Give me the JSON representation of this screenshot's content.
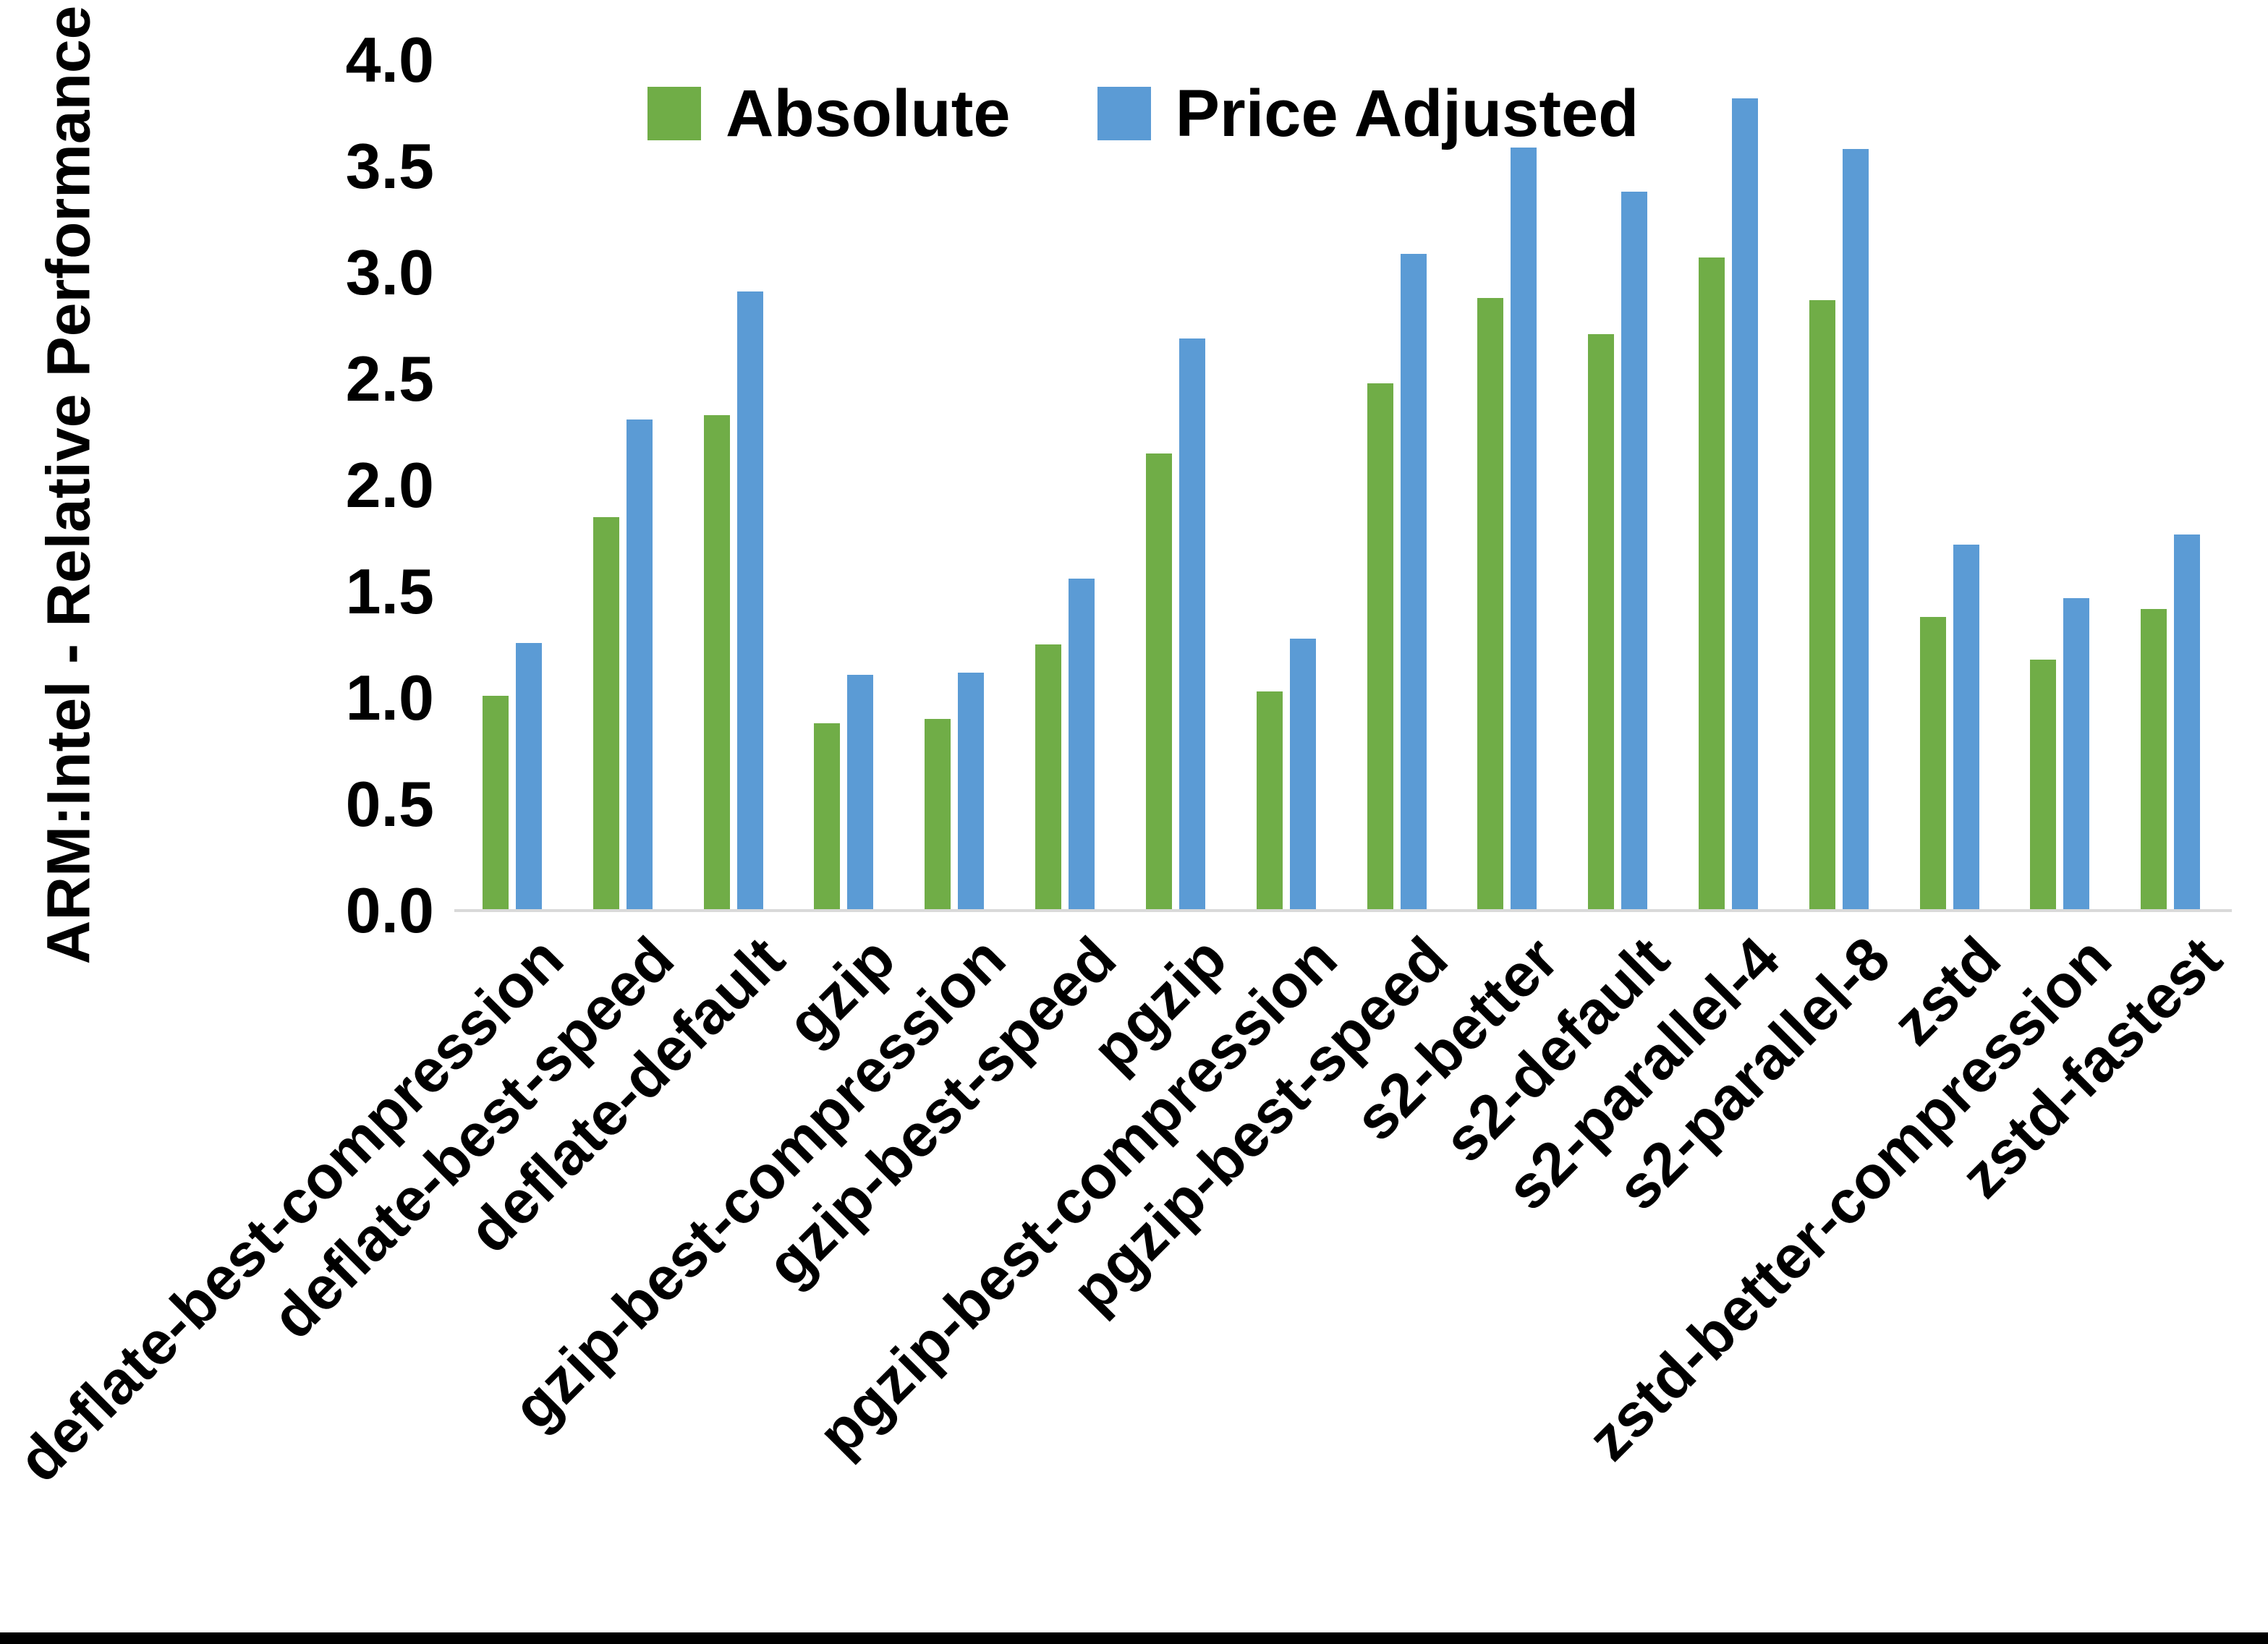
{
  "chart_data": {
    "type": "bar",
    "title": "",
    "xlabel": "",
    "ylabel": "ARM:Intel - Relative Performance",
    "ylim": [
      0.0,
      4.0
    ],
    "ytick_step": 0.5,
    "ytick_labels": [
      "0.0",
      "0.5",
      "1.0",
      "1.5",
      "2.0",
      "2.5",
      "3.0",
      "3.5",
      "4.0"
    ],
    "grid": false,
    "legend_position": "top-center",
    "categories": [
      "deflate-best-compression",
      "deflate-best-speed",
      "deflate-default",
      "gzip",
      "gzip-best-compression",
      "gzip-best-speed",
      "pgzip",
      "pgzip-best-compression",
      "pgzip-best-speed",
      "s2-better",
      "s2-default",
      "s2-parallel-4",
      "s2-parallel-8",
      "zstd",
      "zstd-better-compression",
      "zstd-fastest"
    ],
    "series": [
      {
        "name": "Absolute",
        "color": "#70AD47",
        "values": [
          1.01,
          1.85,
          2.33,
          0.88,
          0.9,
          1.25,
          2.15,
          1.03,
          2.48,
          2.88,
          2.71,
          3.07,
          2.87,
          1.38,
          1.18,
          1.42
        ]
      },
      {
        "name": "Price Adjusted",
        "color": "#5B9BD5",
        "values": [
          1.26,
          2.31,
          2.91,
          1.11,
          1.12,
          1.56,
          2.69,
          1.28,
          3.09,
          3.59,
          3.38,
          3.82,
          3.58,
          1.72,
          1.47,
          1.77
        ]
      }
    ],
    "colors": {
      "axis_line": "#D9D9D9",
      "text": "#000000",
      "background": "#FFFFFF",
      "bottom_border": "#000000"
    }
  }
}
